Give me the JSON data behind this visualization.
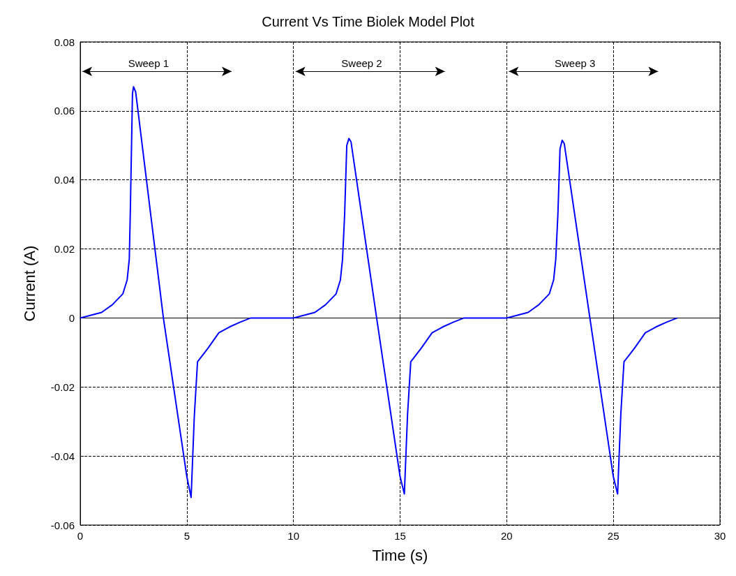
{
  "chart_data": {
    "type": "line",
    "title": "Current Vs Time Biolek Model Plot",
    "xlabel": "Time (s)",
    "ylabel": "Current (A)",
    "xlim": [
      0,
      30
    ],
    "xticks": [
      0,
      5,
      10,
      15,
      20,
      25,
      30
    ],
    "ylim": [
      -0.06,
      0.08
    ],
    "yticks": [
      -0.06,
      -0.04,
      -0.02,
      0,
      0.02,
      0.04,
      0.06,
      0.08
    ],
    "grid": true,
    "line_style": "solid",
    "annotations": [
      "Sweep 1",
      "Sweep 2",
      "Sweep 3"
    ],
    "series": [
      {
        "color": "#0000ff",
        "x": [
          0,
          1,
          1.5,
          2,
          2.2,
          2.3,
          2.35,
          2.45,
          2.5,
          2.6,
          3.9,
          5.0,
          5.2,
          5.35,
          5.5,
          6,
          6.5,
          7,
          7.5,
          8,
          10,
          11,
          11.5,
          12,
          12.2,
          12.3,
          12.4,
          12.5,
          12.6,
          12.7,
          13.9,
          15.0,
          15.2,
          15.35,
          15.5,
          16,
          16.5,
          17,
          17.5,
          18,
          20,
          21,
          21.5,
          22,
          22.2,
          22.3,
          22.4,
          22.5,
          22.6,
          22.7,
          23.9,
          25.0,
          25.2,
          25.35,
          25.5,
          26,
          26.5,
          27,
          27.5,
          28
        ],
        "values": [
          0,
          0.0016,
          0.0038,
          0.007,
          0.011,
          0.017,
          0.031,
          0.065,
          0.067,
          0.0655,
          0,
          -0.046,
          -0.052,
          -0.0285,
          -0.0127,
          -0.0087,
          -0.0043,
          -0.0026,
          -0.0012,
          0,
          0,
          0.0016,
          0.0038,
          0.007,
          0.011,
          0.017,
          0.03,
          0.05,
          0.052,
          0.051,
          0,
          -0.046,
          -0.051,
          -0.028,
          -0.0127,
          -0.0087,
          -0.0043,
          -0.0026,
          -0.0012,
          0,
          0,
          0.0016,
          0.0038,
          0.007,
          0.011,
          0.017,
          0.03,
          0.049,
          0.0515,
          0.0505,
          0,
          -0.046,
          -0.051,
          -0.028,
          -0.0127,
          -0.0087,
          -0.0043,
          -0.0026,
          -0.0012,
          0
        ]
      }
    ]
  }
}
